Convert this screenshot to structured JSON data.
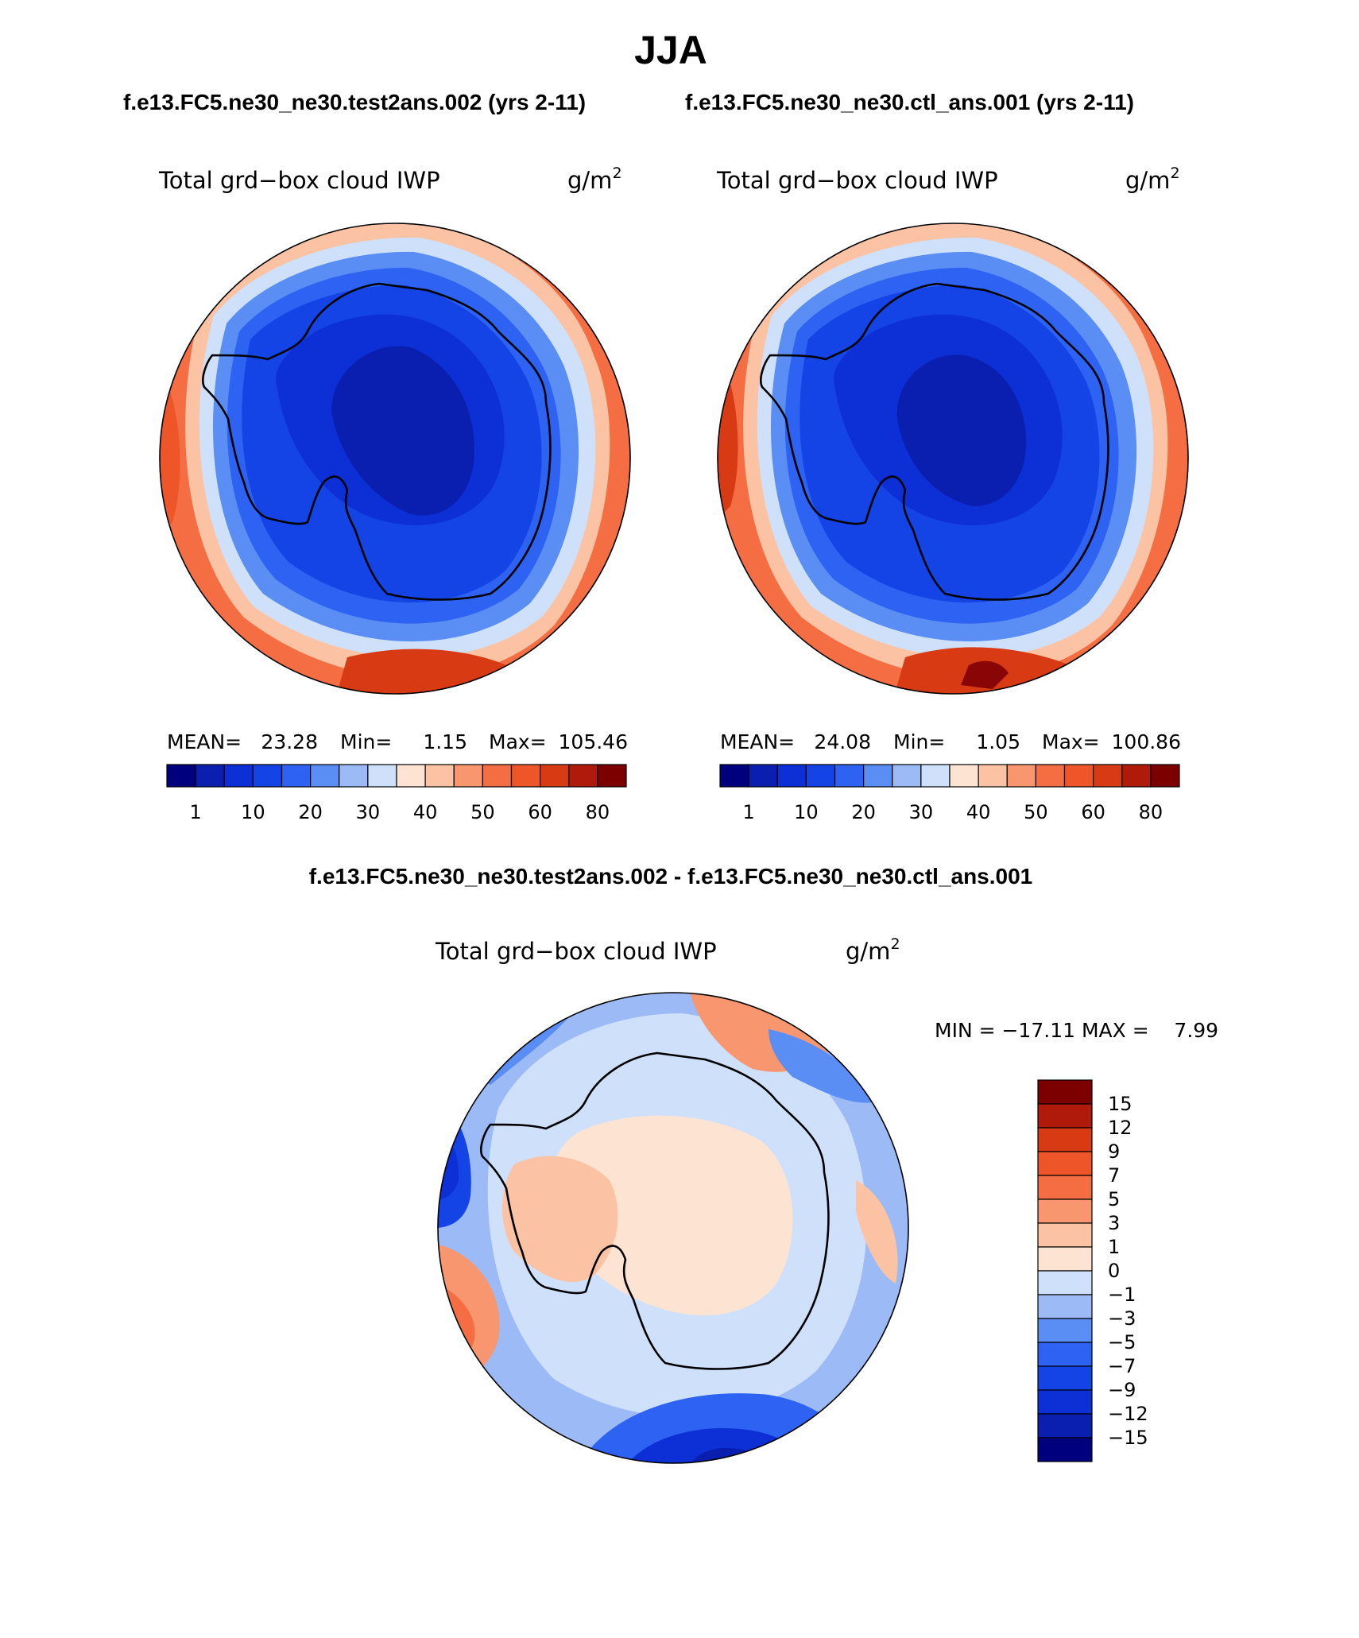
{
  "title": "JJA",
  "top_subtitle": {
    "left": "f.e13.FC5.ne30_ne30.test2ans.002 (yrs 2-11)",
    "right": "f.e13.FC5.ne30_ne30.ctl_ans.001 (yrs 2-11)"
  },
  "panels": [
    {
      "variable": "Total grd−box cloud IWP",
      "units": "g/m",
      "units_exp": "2",
      "stats": {
        "mean_label": "MEAN=",
        "mean": "23.28",
        "min_label": "Min=",
        "min": "1.15",
        "max_label": "Max=",
        "max": "105.46"
      }
    },
    {
      "variable": "Total grd−box cloud IWP",
      "units": "g/m",
      "units_exp": "2",
      "stats": {
        "mean_label": "MEAN=",
        "mean": "24.08",
        "min_label": "Min=",
        "min": "1.05",
        "max_label": "Max=",
        "max": "100.86"
      }
    }
  ],
  "colorbar_main": {
    "colors": [
      "#00007f",
      "#0a1fb0",
      "#0d2fd6",
      "#1444e6",
      "#2d62f2",
      "#5b8ef4",
      "#9cbaf5",
      "#cfe0fb",
      "#fde3d2",
      "#fbc3a4",
      "#f89670",
      "#f46d43",
      "#ee5528",
      "#d83a14",
      "#b01a0a",
      "#7d0000"
    ],
    "labels": [
      "1",
      "10",
      "20",
      "30",
      "40",
      "50",
      "60",
      "80"
    ]
  },
  "diff": {
    "subtitle": "f.e13.FC5.ne30_ne30.test2ans.002 - f.e13.FC5.ne30_ne30.ctl_ans.001",
    "variable": "Total grd−box cloud IWP",
    "units": "g/m",
    "units_exp": "2",
    "minmax_text": "MIN = −17.11 MAX =    7.99",
    "colorbar": {
      "colors": [
        "#7d0000",
        "#b01a0a",
        "#d83a14",
        "#ee5528",
        "#f46d43",
        "#f89670",
        "#fbc3a4",
        "#fde3d2",
        "#cfe0fb",
        "#9cbaf5",
        "#5b8ef4",
        "#2d62f2",
        "#1444e6",
        "#0d2fd6",
        "#0a1fb0",
        "#00007f"
      ],
      "labels": [
        "15",
        "12",
        "9",
        "7",
        "5",
        "3",
        "1",
        "0",
        "−1",
        "−3",
        "−5",
        "−7",
        "−9",
        "−12",
        "−15"
      ]
    }
  }
}
